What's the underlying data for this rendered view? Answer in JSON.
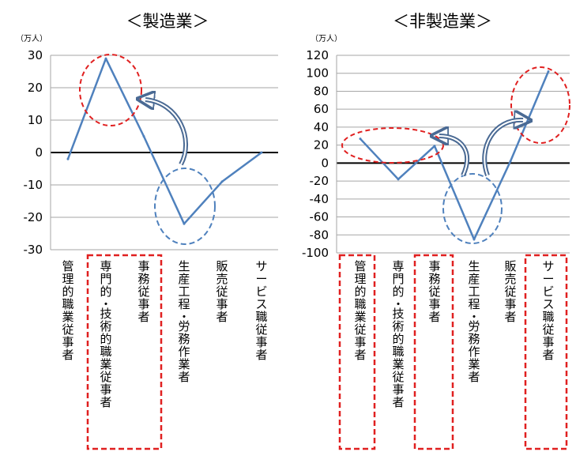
{
  "charts": [
    {
      "title": "＜製造業＞",
      "unit": "（万人）",
      "chart_type": "line",
      "categories": [
        "管理的職業従事者",
        "専門的・技術的職業従事者",
        "事務従事者",
        "生産工程・労務作業者",
        "販売従事者",
        "サービス職従事者"
      ],
      "values": [
        -2,
        29,
        5,
        -22,
        -9,
        0
      ],
      "ylim": [
        -30,
        30
      ],
      "yticks": [
        "30",
        "20",
        "10",
        "0",
        "-10",
        "-20",
        "-30"
      ],
      "highlighted_categories": [
        "専門的・技術的職業従事者",
        "事務従事者"
      ]
    },
    {
      "title": "＜非製造業＞",
      "unit": "（万人）",
      "chart_type": "line",
      "categories": [
        "管理的職業従事者",
        "専門的・技術的職業従事者",
        "事務従事者",
        "生産工程・労務作業者",
        "販売従事者",
        "サービス職従事者"
      ],
      "values": [
        27,
        -18,
        19,
        -85,
        2,
        102
      ],
      "ylim": [
        -100,
        120
      ],
      "yticks": [
        "120",
        "100",
        "80",
        "60",
        "40",
        "20",
        "0",
        "-20",
        "-40",
        "-60",
        "-80",
        "-100"
      ],
      "highlighted_categories": [
        "管理的職業従事者",
        "事務従事者",
        "サービス職従事者"
      ]
    }
  ],
  "chart_data": [
    {
      "type": "line",
      "title": "＜製造業＞",
      "ylabel": "（万人）",
      "categories": [
        "管理的職業従事者",
        "専門的・技術的職業従事者",
        "事務従事者",
        "生産工程・労務作業者",
        "販売従事者",
        "サービス職従事者"
      ],
      "values": [
        -2,
        29,
        5,
        -22,
        -9,
        0
      ],
      "ylim": [
        -30,
        30
      ],
      "grid": true
    },
    {
      "type": "line",
      "title": "＜非製造業＞",
      "ylabel": "（万人）",
      "categories": [
        "管理的職業従事者",
        "専門的・技術的職業従事者",
        "事務従事者",
        "生産工程・労務作業者",
        "販売従事者",
        "サービス職従事者"
      ],
      "values": [
        27,
        -18,
        19,
        -85,
        2,
        102
      ],
      "ylim": [
        -100,
        120
      ],
      "grid": true
    }
  ],
  "colors": {
    "line": "#4f81bd",
    "grid": "#a6a6a6",
    "highlight_red": "#e02020",
    "highlight_blue": "#4f81bd",
    "arrow": "#4a6a94"
  }
}
